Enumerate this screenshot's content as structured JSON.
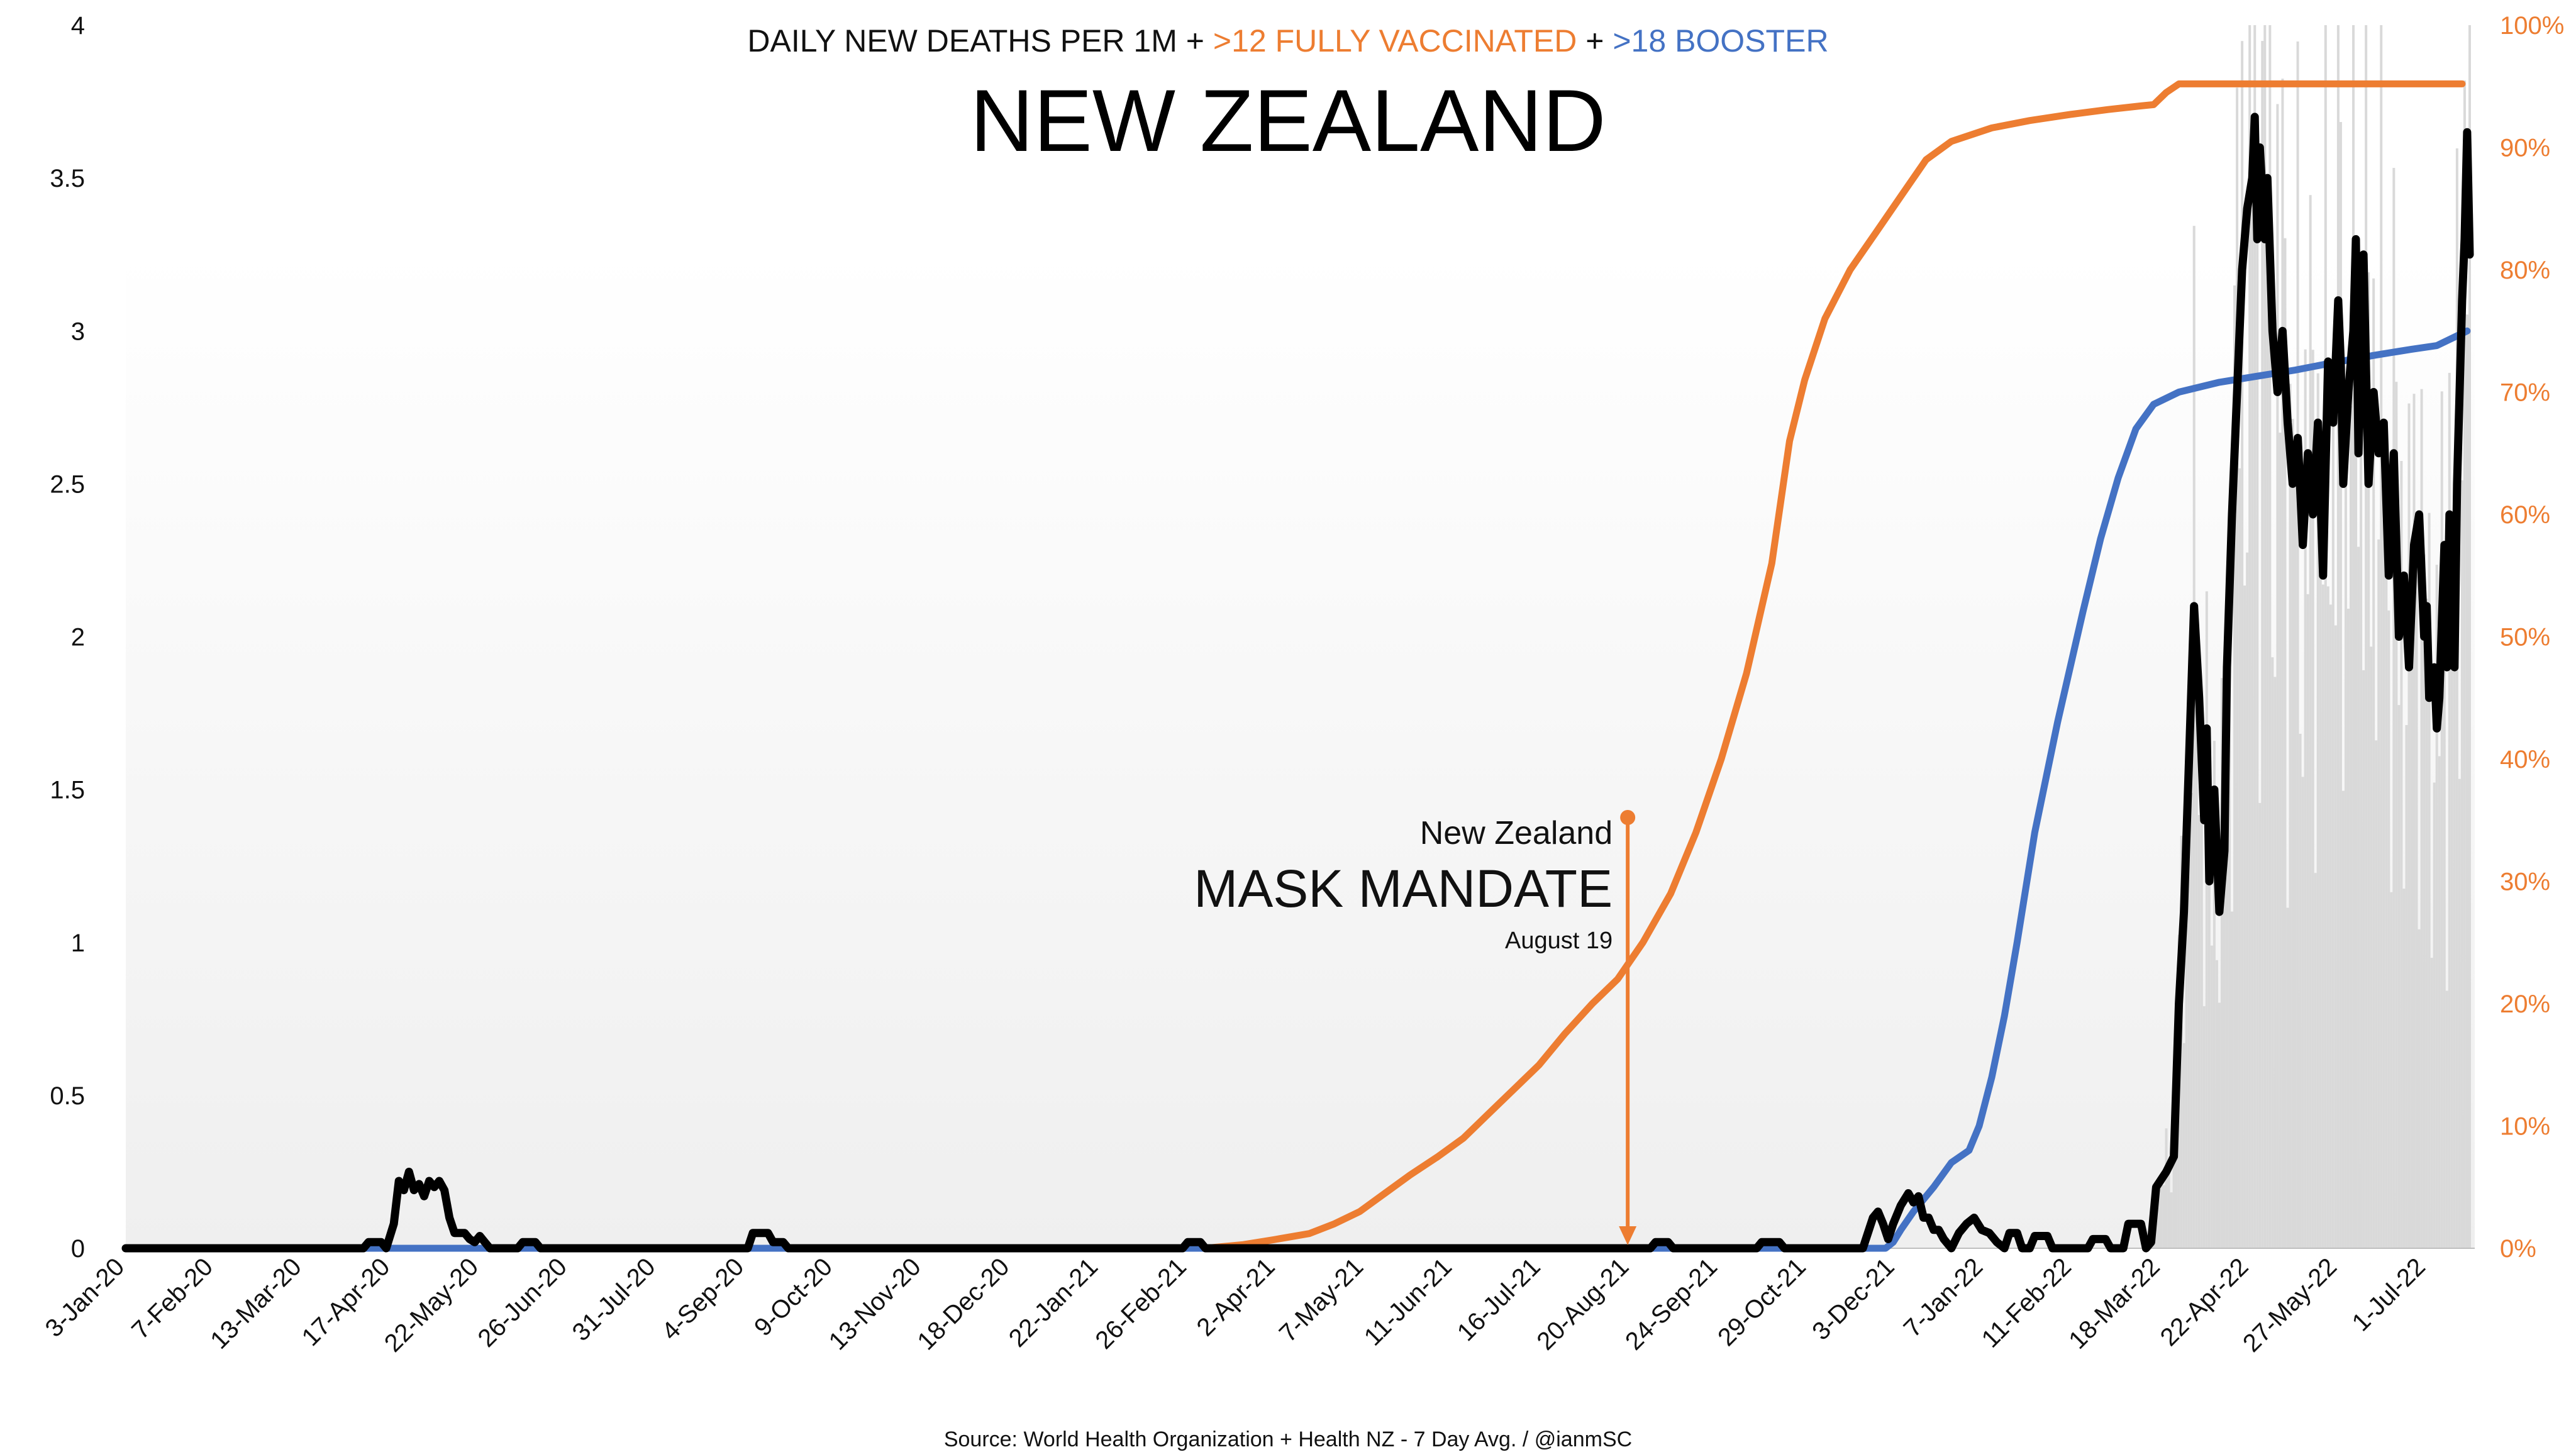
{
  "chart_data": {
    "type": "line",
    "title": "NEW ZEALAND",
    "subtitle": {
      "part1": "DAILY NEW DEATHS PER 1M +",
      "part2": ">12 FULLY VACCINATED",
      "part3": "+",
      "part4": ">18 BOOSTER"
    },
    "source": "Source: World Health Organization + Health NZ - 7 Day Avg. / @ianmSC",
    "colors": {
      "deaths": "#000000",
      "vaccinated": "#ED7D31",
      "booster": "#4472C4",
      "daily_bars": "#D9D9D9",
      "right_axis": "#ED7D31"
    },
    "grid": false,
    "x_range": [
      "2020-01-03",
      "2022-07-20"
    ],
    "x_tick_dates": [
      "2020-01-03",
      "2020-02-07",
      "2020-03-13",
      "2020-04-17",
      "2020-05-22",
      "2020-06-26",
      "2020-07-31",
      "2020-09-04",
      "2020-10-09",
      "2020-11-13",
      "2020-12-18",
      "2021-01-22",
      "2021-02-26",
      "2021-04-02",
      "2021-05-07",
      "2021-06-11",
      "2021-07-16",
      "2021-08-20",
      "2021-09-24",
      "2021-10-29",
      "2021-12-03",
      "2022-01-07",
      "2022-02-11",
      "2022-03-18",
      "2022-04-22",
      "2022-05-27",
      "2022-07-01"
    ],
    "x_tick_labels": [
      "3-Jan-20",
      "7-Feb-20",
      "13-Mar-20",
      "17-Apr-20",
      "22-May-20",
      "26-Jun-20",
      "31-Jul-20",
      "4-Sep-20",
      "9-Oct-20",
      "13-Nov-20",
      "18-Dec-20",
      "22-Jan-21",
      "26-Feb-21",
      "2-Apr-21",
      "7-May-21",
      "11-Jun-21",
      "16-Jul-21",
      "20-Aug-21",
      "24-Sep-21",
      "29-Oct-21",
      "3-Dec-21",
      "7-Jan-22",
      "11-Feb-22",
      "18-Mar-22",
      "22-Apr-22",
      "27-May-22",
      "1-Jul-22"
    ],
    "y_left": {
      "range": [
        0,
        4
      ],
      "ticks": [
        0,
        0.5,
        1,
        1.5,
        2,
        2.5,
        3,
        3.5,
        4
      ],
      "tick_labels": [
        "0",
        "0.5",
        "1",
        "1.5",
        "2",
        "2.5",
        "3",
        "3.5",
        "4"
      ]
    },
    "y_right": {
      "range": [
        0,
        100
      ],
      "ticks": [
        0,
        10,
        20,
        30,
        40,
        50,
        60,
        70,
        80,
        90,
        100
      ],
      "tick_labels": [
        "0%",
        "10%",
        "20%",
        "30%",
        "40%",
        "50%",
        "60%",
        "70%",
        "80%",
        "90%",
        "100%"
      ]
    },
    "series": [
      {
        "key": "deaths",
        "axis": "left",
        "points": [
          [
            "2020-01-03",
            0
          ],
          [
            "2020-04-06",
            0
          ],
          [
            "2020-04-08",
            0.02
          ],
          [
            "2020-04-13",
            0.02
          ],
          [
            "2020-04-15",
            0
          ],
          [
            "2020-04-18",
            0.08
          ],
          [
            "2020-04-20",
            0.22
          ],
          [
            "2020-04-22",
            0.19
          ],
          [
            "2020-04-24",
            0.25
          ],
          [
            "2020-04-26",
            0.19
          ],
          [
            "2020-04-28",
            0.21
          ],
          [
            "2020-04-30",
            0.17
          ],
          [
            "2020-05-02",
            0.22
          ],
          [
            "2020-05-04",
            0.2
          ],
          [
            "2020-05-06",
            0.22
          ],
          [
            "2020-05-08",
            0.19
          ],
          [
            "2020-05-10",
            0.1
          ],
          [
            "2020-05-12",
            0.05
          ],
          [
            "2020-05-14",
            0.05
          ],
          [
            "2020-05-16",
            0.05
          ],
          [
            "2020-05-18",
            0.03
          ],
          [
            "2020-05-20",
            0.02
          ],
          [
            "2020-05-22",
            0.04
          ],
          [
            "2020-05-24",
            0.02
          ],
          [
            "2020-05-26",
            0
          ],
          [
            "2020-06-06",
            0
          ],
          [
            "2020-06-08",
            0.02
          ],
          [
            "2020-06-13",
            0.02
          ],
          [
            "2020-06-15",
            0
          ],
          [
            "2020-09-05",
            0
          ],
          [
            "2020-09-07",
            0.05
          ],
          [
            "2020-09-13",
            0.05
          ],
          [
            "2020-09-15",
            0.02
          ],
          [
            "2020-09-19",
            0.02
          ],
          [
            "2020-09-21",
            0
          ],
          [
            "2021-02-24",
            0
          ],
          [
            "2021-02-26",
            0.02
          ],
          [
            "2021-03-03",
            0.02
          ],
          [
            "2021-03-05",
            0
          ],
          [
            "2021-08-28",
            0
          ],
          [
            "2021-08-30",
            0.02
          ],
          [
            "2021-09-04",
            0.02
          ],
          [
            "2021-09-06",
            0
          ],
          [
            "2021-10-09",
            0
          ],
          [
            "2021-10-11",
            0.02
          ],
          [
            "2021-10-18",
            0.02
          ],
          [
            "2021-10-20",
            0
          ],
          [
            "2021-11-20",
            0
          ],
          [
            "2021-11-22",
            0.05
          ],
          [
            "2021-11-24",
            0.1
          ],
          [
            "2021-11-26",
            0.12
          ],
          [
            "2021-11-28",
            0.08
          ],
          [
            "2021-11-30",
            0.03
          ],
          [
            "2021-12-02",
            0.08
          ],
          [
            "2021-12-05",
            0.14
          ],
          [
            "2021-12-08",
            0.18
          ],
          [
            "2021-12-10",
            0.15
          ],
          [
            "2021-12-12",
            0.17
          ],
          [
            "2021-12-14",
            0.1
          ],
          [
            "2021-12-16",
            0.1
          ],
          [
            "2021-12-18",
            0.06
          ],
          [
            "2021-12-20",
            0.06
          ],
          [
            "2021-12-22",
            0.03
          ],
          [
            "2021-12-25",
            0
          ],
          [
            "2021-12-28",
            0.05
          ],
          [
            "2021-12-31",
            0.08
          ],
          [
            "2022-01-03",
            0.1
          ],
          [
            "2022-01-06",
            0.06
          ],
          [
            "2022-01-09",
            0.05
          ],
          [
            "2022-01-12",
            0.02
          ],
          [
            "2022-01-15",
            0
          ],
          [
            "2022-01-17",
            0.05
          ],
          [
            "2022-01-20",
            0.05
          ],
          [
            "2022-01-22",
            0
          ],
          [
            "2022-01-25",
            0
          ],
          [
            "2022-01-27",
            0.04
          ],
          [
            "2022-02-01",
            0.04
          ],
          [
            "2022-02-03",
            0
          ],
          [
            "2022-02-17",
            0
          ],
          [
            "2022-02-19",
            0.03
          ],
          [
            "2022-02-24",
            0.03
          ],
          [
            "2022-02-26",
            0
          ],
          [
            "2022-03-03",
            0
          ],
          [
            "2022-03-05",
            0.08
          ],
          [
            "2022-03-10",
            0.08
          ],
          [
            "2022-03-12",
            0
          ],
          [
            "2022-03-14",
            0.02
          ],
          [
            "2022-03-16",
            0.2
          ],
          [
            "2022-03-20",
            0.25
          ],
          [
            "2022-03-23",
            0.3
          ],
          [
            "2022-03-25",
            0.8
          ],
          [
            "2022-03-27",
            1.1
          ],
          [
            "2022-03-29",
            1.6
          ],
          [
            "2022-03-31",
            2.1
          ],
          [
            "2022-04-02",
            1.8
          ],
          [
            "2022-04-04",
            1.4
          ],
          [
            "2022-04-05",
            1.7
          ],
          [
            "2022-04-06",
            1.2
          ],
          [
            "2022-04-08",
            1.5
          ],
          [
            "2022-04-10",
            1.1
          ],
          [
            "2022-04-12",
            1.3
          ],
          [
            "2022-04-13",
            1.9
          ],
          [
            "2022-04-15",
            2.4
          ],
          [
            "2022-04-17",
            2.8
          ],
          [
            "2022-04-19",
            3.2
          ],
          [
            "2022-04-21",
            3.4
          ],
          [
            "2022-04-23",
            3.5
          ],
          [
            "2022-04-24",
            3.7
          ],
          [
            "2022-04-25",
            3.3
          ],
          [
            "2022-04-26",
            3.6
          ],
          [
            "2022-04-28",
            3.3
          ],
          [
            "2022-04-29",
            3.5
          ],
          [
            "2022-05-01",
            3.0
          ],
          [
            "2022-05-03",
            2.8
          ],
          [
            "2022-05-05",
            3.0
          ],
          [
            "2022-05-07",
            2.7
          ],
          [
            "2022-05-09",
            2.5
          ],
          [
            "2022-05-11",
            2.65
          ],
          [
            "2022-05-13",
            2.3
          ],
          [
            "2022-05-15",
            2.6
          ],
          [
            "2022-05-17",
            2.4
          ],
          [
            "2022-05-19",
            2.7
          ],
          [
            "2022-05-21",
            2.2
          ],
          [
            "2022-05-23",
            2.9
          ],
          [
            "2022-05-25",
            2.7
          ],
          [
            "2022-05-27",
            3.1
          ],
          [
            "2022-05-28",
            2.9
          ],
          [
            "2022-05-29",
            2.5
          ],
          [
            "2022-05-31",
            2.8
          ],
          [
            "2022-06-02",
            3.0
          ],
          [
            "2022-06-03",
            3.3
          ],
          [
            "2022-06-04",
            2.6
          ],
          [
            "2022-06-06",
            3.25
          ],
          [
            "2022-06-08",
            2.5
          ],
          [
            "2022-06-10",
            2.8
          ],
          [
            "2022-06-12",
            2.6
          ],
          [
            "2022-06-14",
            2.7
          ],
          [
            "2022-06-16",
            2.2
          ],
          [
            "2022-06-18",
            2.6
          ],
          [
            "2022-06-20",
            2.0
          ],
          [
            "2022-06-22",
            2.2
          ],
          [
            "2022-06-24",
            1.9
          ],
          [
            "2022-06-26",
            2.3
          ],
          [
            "2022-06-28",
            2.4
          ],
          [
            "2022-06-30",
            2.0
          ],
          [
            "2022-07-01",
            2.1
          ],
          [
            "2022-07-02",
            1.8
          ],
          [
            "2022-07-04",
            1.9
          ],
          [
            "2022-07-05",
            1.7
          ],
          [
            "2022-07-06",
            1.8
          ],
          [
            "2022-07-08",
            2.3
          ],
          [
            "2022-07-09",
            1.9
          ],
          [
            "2022-07-10",
            2.4
          ],
          [
            "2022-07-11",
            2.0
          ],
          [
            "2022-07-12",
            1.9
          ],
          [
            "2022-07-13",
            2.5
          ],
          [
            "2022-07-14",
            2.8
          ],
          [
            "2022-07-15",
            3.1
          ],
          [
            "2022-07-16",
            3.3
          ],
          [
            "2022-07-17",
            3.65
          ],
          [
            "2022-07-18",
            3.25
          ]
        ]
      },
      {
        "key": "vaccinated",
        "axis": "right",
        "points": [
          [
            "2021-03-05",
            0
          ],
          [
            "2021-03-20",
            0.3
          ],
          [
            "2021-04-01",
            0.7
          ],
          [
            "2021-04-15",
            1.2
          ],
          [
            "2021-04-25",
            2
          ],
          [
            "2021-05-05",
            3
          ],
          [
            "2021-05-15",
            4.5
          ],
          [
            "2021-05-25",
            6
          ],
          [
            "2021-06-05",
            7.5
          ],
          [
            "2021-06-15",
            9
          ],
          [
            "2021-06-25",
            11
          ],
          [
            "2021-07-05",
            13
          ],
          [
            "2021-07-15",
            15
          ],
          [
            "2021-07-25",
            17.5
          ],
          [
            "2021-08-05",
            20
          ],
          [
            "2021-08-15",
            22
          ],
          [
            "2021-08-25",
            25
          ],
          [
            "2021-09-05",
            29
          ],
          [
            "2021-09-15",
            34
          ],
          [
            "2021-09-25",
            40
          ],
          [
            "2021-10-05",
            47
          ],
          [
            "2021-10-15",
            56
          ],
          [
            "2021-10-22",
            66
          ],
          [
            "2021-10-28",
            71
          ],
          [
            "2021-11-05",
            76
          ],
          [
            "2021-11-15",
            80
          ],
          [
            "2021-11-25",
            83
          ],
          [
            "2021-12-05",
            86
          ],
          [
            "2021-12-15",
            89
          ],
          [
            "2021-12-25",
            90.5
          ],
          [
            "2022-01-10",
            91.6
          ],
          [
            "2022-01-25",
            92.2
          ],
          [
            "2022-02-10",
            92.7
          ],
          [
            "2022-02-25",
            93.1
          ],
          [
            "2022-03-10",
            93.4
          ],
          [
            "2022-03-15",
            93.5
          ],
          [
            "2022-03-20",
            94.5
          ],
          [
            "2022-03-25",
            95.2
          ],
          [
            "2022-04-01",
            95.2
          ],
          [
            "2022-05-01",
            95.2
          ],
          [
            "2022-06-01",
            95.2
          ],
          [
            "2022-07-15",
            95.2
          ]
        ]
      },
      {
        "key": "booster",
        "axis": "right",
        "points": [
          [
            "2020-01-03",
            0
          ],
          [
            "2021-11-29",
            0
          ],
          [
            "2021-12-02",
            0.5
          ],
          [
            "2021-12-05",
            1.5
          ],
          [
            "2021-12-10",
            3
          ],
          [
            "2021-12-18",
            5
          ],
          [
            "2021-12-25",
            7
          ],
          [
            "2022-01-01",
            8
          ],
          [
            "2022-01-05",
            10
          ],
          [
            "2022-01-10",
            14
          ],
          [
            "2022-01-15",
            19
          ],
          [
            "2022-01-20",
            25
          ],
          [
            "2022-01-27",
            34
          ],
          [
            "2022-02-05",
            43
          ],
          [
            "2022-02-15",
            52
          ],
          [
            "2022-02-22",
            58
          ],
          [
            "2022-03-01",
            63
          ],
          [
            "2022-03-08",
            67
          ],
          [
            "2022-03-15",
            69
          ],
          [
            "2022-03-25",
            70
          ],
          [
            "2022-04-10",
            70.8
          ],
          [
            "2022-04-25",
            71.3
          ],
          [
            "2022-05-10",
            71.8
          ],
          [
            "2022-05-25",
            72.4
          ],
          [
            "2022-06-10",
            73
          ],
          [
            "2022-06-25",
            73.5
          ],
          [
            "2022-07-05",
            73.8
          ],
          [
            "2022-07-12",
            74.5
          ],
          [
            "2022-07-17",
            75
          ]
        ]
      }
    ],
    "daily_bars_note": "",
    "annotation": {
      "date": "2021-08-19",
      "line1": "New Zealand",
      "line2": "MASK MANDATE",
      "line3": "August 19",
      "color": "#ED7D31"
    }
  }
}
